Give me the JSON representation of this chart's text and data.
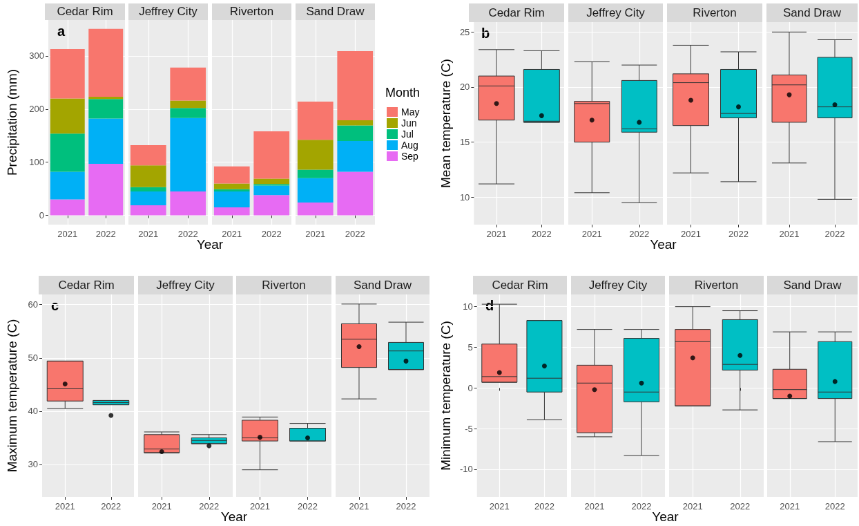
{
  "chart_data": [
    {
      "type": "bar",
      "title": "Cedar Rim",
      "ylabel": "Precipitation (mm)",
      "annotations": [
        "a"
      ],
      "categories": [
        "2021",
        "2022"
      ],
      "stacked": true,
      "grid": true,
      "ylim": [
        -17.5,
        367.5
      ],
      "yticks": [
        0,
        100,
        200,
        300
      ],
      "series": [
        {
          "color": "#e76bf3",
          "values": [
            30,
            97
          ]
        },
        {
          "color": "#00b0f6",
          "values": [
            52,
            85
          ]
        },
        {
          "color": "#00bf7d",
          "values": [
            72,
            37
          ]
        },
        {
          "color": "#a3a500",
          "values": [
            66,
            4
          ]
        },
        {
          "color": "#f8766d",
          "values": [
            93,
            128
          ]
        }
      ]
    },
    {
      "type": "bar",
      "title": "Jeffrey City",
      "xlabel": "Year",
      "categories": [
        "2021",
        "2022"
      ],
      "stacked": true,
      "grid": true,
      "tick_labels": "x",
      "ylim": [
        -17.5,
        367.5
      ],
      "yticks": [
        0,
        100,
        200,
        300
      ],
      "series": [
        {
          "color": "#e76bf3",
          "values": [
            19,
            45
          ]
        },
        {
          "color": "#00b0f6",
          "values": [
            26,
            138
          ]
        },
        {
          "color": "#00bf7d",
          "values": [
            8,
            19
          ]
        },
        {
          "color": "#a3a500",
          "values": [
            41,
            14
          ]
        },
        {
          "color": "#f8766d",
          "values": [
            38,
            62
          ]
        }
      ]
    },
    {
      "type": "bar",
      "title": "Riverton",
      "categories": [
        "2021",
        "2022"
      ],
      "stacked": true,
      "grid": true,
      "tick_labels": "x",
      "ylim": [
        -17.5,
        367.5
      ],
      "yticks": [
        0,
        100,
        200,
        300
      ],
      "series": [
        {
          "color": "#e76bf3",
          "values": [
            15,
            38
          ]
        },
        {
          "color": "#00b0f6",
          "values": [
            30,
            18
          ]
        },
        {
          "color": "#00bf7d",
          "values": [
            4,
            3
          ]
        },
        {
          "color": "#a3a500",
          "values": [
            11,
            10
          ]
        },
        {
          "color": "#f8766d",
          "values": [
            32,
            89
          ]
        }
      ]
    },
    {
      "type": "bar",
      "title": "Sand Draw",
      "legend_title": "Month",
      "legend": "right",
      "categories": [
        "2021",
        "2022"
      ],
      "stacked": true,
      "grid": true,
      "tick_labels": "x",
      "ylim": [
        -17.5,
        367.5
      ],
      "yticks": [
        0,
        100,
        200,
        300
      ],
      "series": [
        {
          "name": "Sep",
          "color": "#e76bf3",
          "values": [
            24,
            82
          ]
        },
        {
          "name": "Aug",
          "color": "#00b0f6",
          "values": [
            46,
            58
          ]
        },
        {
          "name": "Jul",
          "color": "#00bf7d",
          "values": [
            16,
            29
          ]
        },
        {
          "name": "Jun",
          "color": "#a3a500",
          "values": [
            56,
            10
          ]
        },
        {
          "name": "May",
          "color": "#f8766d",
          "values": [
            72,
            130
          ]
        }
      ]
    },
    {
      "type": "box",
      "title": "Cedar Rim",
      "ylabel": "Mean temperature (C)",
      "annotations": [
        "b"
      ],
      "categories": [
        "2021",
        "2022"
      ],
      "colors": [
        "#f8766d",
        "#00bfc4"
      ],
      "grid": true,
      "ylim": [
        7.5,
        25.9
      ],
      "yticks": [
        10,
        15,
        20,
        25
      ],
      "boxes": [
        {
          "low": 11.2,
          "q1": 17.0,
          "median": 20.1,
          "q3": 21.0,
          "high": 23.4,
          "mean": 18.5
        },
        {
          "low": 16.8,
          "q1": 16.8,
          "median": 16.9,
          "q3": 21.6,
          "high": 23.3,
          "mean": 17.4
        }
      ]
    },
    {
      "type": "box",
      "title": "Jeffrey City",
      "xlabel": "Year",
      "categories": [
        "2021",
        "2022"
      ],
      "colors": [
        "#f8766d",
        "#00bfc4"
      ],
      "grid": true,
      "tick_labels": "x",
      "ylim": [
        7.5,
        25.9
      ],
      "yticks": [
        10,
        15,
        20,
        25
      ],
      "boxes": [
        {
          "low": 10.4,
          "q1": 15.0,
          "median": 18.5,
          "q3": 18.7,
          "high": 22.3,
          "mean": 17.0
        },
        {
          "low": 9.5,
          "q1": 15.9,
          "median": 16.2,
          "q3": 20.6,
          "high": 22.0,
          "mean": 16.8
        }
      ]
    },
    {
      "type": "box",
      "title": "Riverton",
      "categories": [
        "2021",
        "2022"
      ],
      "colors": [
        "#f8766d",
        "#00bfc4"
      ],
      "grid": true,
      "tick_labels": "x",
      "ylim": [
        7.5,
        25.9
      ],
      "yticks": [
        10,
        15,
        20,
        25
      ],
      "boxes": [
        {
          "low": 12.2,
          "q1": 16.5,
          "median": 20.4,
          "q3": 21.2,
          "high": 23.8,
          "mean": 18.8
        },
        {
          "low": 11.4,
          "q1": 17.2,
          "median": 17.6,
          "q3": 21.6,
          "high": 23.2,
          "mean": 18.2
        }
      ]
    },
    {
      "type": "box",
      "title": "Sand Draw",
      "categories": [
        "2021",
        "2022"
      ],
      "colors": [
        "#f8766d",
        "#00bfc4"
      ],
      "grid": true,
      "tick_labels": "x",
      "ylim": [
        7.5,
        25.9
      ],
      "yticks": [
        10,
        15,
        20,
        25
      ],
      "boxes": [
        {
          "low": 13.1,
          "q1": 16.8,
          "median": 20.2,
          "q3": 21.1,
          "high": 25.0,
          "mean": 19.3
        },
        {
          "low": 9.8,
          "q1": 17.2,
          "median": 18.2,
          "q3": 22.7,
          "high": 24.3,
          "mean": 18.4
        }
      ]
    },
    {
      "type": "box",
      "title": "Cedar Rim",
      "ylabel": "Maximum temperature (C)",
      "annotations": [
        "c"
      ],
      "categories": [
        "2021",
        "2022"
      ],
      "colors": [
        "#f8766d",
        "#00bfc4"
      ],
      "grid": true,
      "ylim": [
        23.9,
        61.9
      ],
      "yticks": [
        30,
        40,
        50,
        60
      ],
      "boxes": [
        {
          "low": 40.5,
          "q1": 41.9,
          "median": 44.2,
          "q3": 49.4,
          "high": 49.4,
          "mean": 45.1
        },
        {
          "low": 41.2,
          "q1": 41.2,
          "median": 41.6,
          "q3": 42.0,
          "high": 42.0,
          "mean": 39.2
        }
      ]
    },
    {
      "type": "box",
      "title": "Jeffrey City",
      "xlabel": "Year",
      "categories": [
        "2021",
        "2022"
      ],
      "colors": [
        "#f8766d",
        "#00bfc4"
      ],
      "grid": true,
      "tick_labels": "x",
      "ylim": [
        23.9,
        61.9
      ],
      "yticks": [
        30,
        40,
        50,
        60
      ],
      "boxes": [
        {
          "low": 32.2,
          "q1": 32.2,
          "median": 32.9,
          "q3": 35.6,
          "high": 36.1,
          "mean": 32.4
        },
        {
          "low": 33.9,
          "q1": 33.9,
          "median": 34.5,
          "q3": 35.0,
          "high": 35.6,
          "mean": 33.5
        }
      ]
    },
    {
      "type": "box",
      "title": "Riverton",
      "categories": [
        "2021",
        "2022"
      ],
      "colors": [
        "#f8766d",
        "#00bfc4"
      ],
      "grid": true,
      "tick_labels": "x",
      "ylim": [
        23.9,
        61.9
      ],
      "yticks": [
        30,
        40,
        50,
        60
      ],
      "boxes": [
        {
          "low": 29.0,
          "q1": 34.4,
          "median": 35.0,
          "q3": 38.3,
          "high": 38.9,
          "mean": 35.1
        },
        {
          "low": 34.4,
          "q1": 34.4,
          "median": 36.8,
          "q3": 36.8,
          "high": 37.7,
          "mean": 35.0
        }
      ]
    },
    {
      "type": "box",
      "title": "Sand Draw",
      "categories": [
        "2021",
        "2022"
      ],
      "colors": [
        "#f8766d",
        "#00bfc4"
      ],
      "grid": true,
      "tick_labels": "x",
      "ylim": [
        23.9,
        61.9
      ],
      "yticks": [
        30,
        40,
        50,
        60
      ],
      "boxes": [
        {
          "low": 42.3,
          "q1": 48.2,
          "median": 53.5,
          "q3": 56.4,
          "high": 60.1,
          "mean": 52.1
        },
        {
          "low": 47.8,
          "q1": 47.8,
          "median": 51.3,
          "q3": 52.9,
          "high": 56.7,
          "mean": 49.4
        }
      ]
    },
    {
      "type": "box",
      "title": "Cedar Rim",
      "ylabel": "Minimum temperature (C)",
      "annotations": [
        "d"
      ],
      "categories": [
        "2021",
        "2022"
      ],
      "colors": [
        "#f8766d",
        "#00bfc4"
      ],
      "grid": true,
      "ylim": [
        -13.4,
        11.5
      ],
      "yticks": [
        -10,
        -5,
        0,
        5,
        10
      ],
      "boxes": [
        {
          "low": 0.7,
          "q1": 0.7,
          "median": 1.4,
          "q3": 5.4,
          "high": 10.3,
          "mean": 1.9
        },
        {
          "low": -3.9,
          "q1": -0.5,
          "median": 1.2,
          "q3": 8.3,
          "high": 8.3,
          "mean": 2.7
        }
      ]
    },
    {
      "type": "box",
      "title": "Jeffrey City",
      "xlabel": "Year",
      "categories": [
        "2021",
        "2022"
      ],
      "colors": [
        "#f8766d",
        "#00bfc4"
      ],
      "grid": true,
      "tick_labels": "x",
      "ylim": [
        -13.4,
        11.5
      ],
      "yticks": [
        -10,
        -5,
        0,
        5,
        10
      ],
      "boxes": [
        {
          "low": -6.0,
          "q1": -5.5,
          "median": 0.6,
          "q3": 2.8,
          "high": 7.2,
          "mean": -0.2
        },
        {
          "low": -8.3,
          "q1": -1.7,
          "median": -0.5,
          "q3": 6.1,
          "high": 7.2,
          "mean": 0.6
        }
      ]
    },
    {
      "type": "box",
      "title": "Riverton",
      "categories": [
        "2021",
        "2022"
      ],
      "colors": [
        "#f8766d",
        "#00bfc4"
      ],
      "grid": true,
      "tick_labels": "x",
      "ylim": [
        -13.4,
        11.5
      ],
      "yticks": [
        -10,
        -5,
        0,
        5,
        10
      ],
      "boxes": [
        {
          "low": -2.2,
          "q1": -2.2,
          "median": 5.7,
          "q3": 7.2,
          "high": 10.0,
          "mean": 3.7
        },
        {
          "low": -2.7,
          "q1": 2.2,
          "median": 2.9,
          "q3": 8.4,
          "high": 9.5,
          "mean": 4.0
        }
      ]
    },
    {
      "type": "box",
      "title": "Sand Draw",
      "categories": [
        "2021",
        "2022"
      ],
      "colors": [
        "#f8766d",
        "#00bfc4"
      ],
      "grid": true,
      "tick_labels": "x",
      "ylim": [
        -13.4,
        11.5
      ],
      "yticks": [
        -10,
        -5,
        0,
        5,
        10
      ],
      "boxes": [
        {
          "low": -1.3,
          "q1": -1.3,
          "median": -0.2,
          "q3": 2.3,
          "high": 6.9,
          "mean": -1.0
        },
        {
          "low": -6.6,
          "q1": -1.3,
          "median": -0.5,
          "q3": 5.7,
          "high": 6.9,
          "mean": 0.8
        }
      ]
    }
  ]
}
